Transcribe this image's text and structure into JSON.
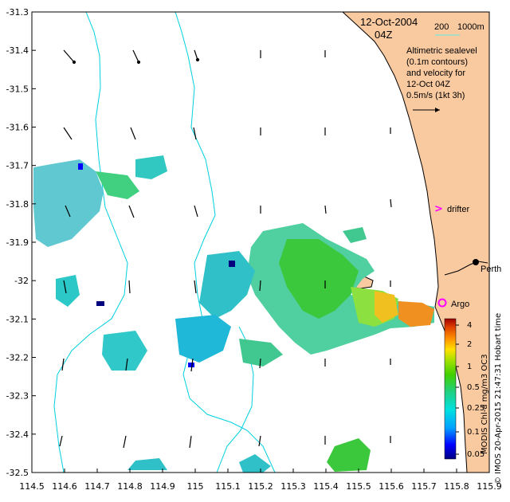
{
  "title": {
    "date": "12-Oct-2004",
    "time": "04Z"
  },
  "depth_legend": {
    "label_200": "200",
    "label_1000": "1000m",
    "color_200": "#00c8c8",
    "color_1000": "#90e0d0"
  },
  "legend_text": [
    "Altimetric sealevel",
    "(0.1m contours)",
    "and velocity for",
    "12-Oct 04Z",
    "0.5m/s (1kt 3h)"
  ],
  "markers": {
    "drifter": "drifter",
    "argo": "Argo",
    "city": "Perth",
    "drifter_color": "#ff00ff",
    "argo_color": "#ff00ff"
  },
  "axes": {
    "x_ticks": [
      "114.5",
      "114.6",
      "114.7",
      "114.8",
      "114.9",
      "115",
      "115.1",
      "115.2",
      "115.3",
      "115.4",
      "115.5",
      "115.6",
      "115.7",
      "115.8",
      "115.9"
    ],
    "y_ticks": [
      "-31.3",
      "-31.4",
      "-31.5",
      "-31.6",
      "-31.7",
      "-31.8",
      "-31.9",
      "-32",
      "-32.1",
      "-32.2",
      "-32.3",
      "-32.4",
      "-32.5"
    ],
    "xlim": [
      114.5,
      115.9
    ],
    "ylim": [
      -32.5,
      -31.3
    ]
  },
  "colorbar": {
    "ticks": [
      "4",
      "2",
      "1",
      "0.5",
      "0.25",
      "0.1",
      "0.05"
    ],
    "label": "MODIS Chl-a mg/m3 OC3",
    "colors": [
      "#00007f",
      "#0000ff",
      "#00a0ff",
      "#00e0e0",
      "#20d080",
      "#40d000",
      "#a0e000",
      "#ffe000",
      "#ff9000",
      "#e04000",
      "#a00000"
    ]
  },
  "credit": "© IMOS 20-Apr-2015 21:47:31 Hobart time",
  "colors": {
    "land": "#f9c9a0",
    "coast": "#000000",
    "contour": "#00d0e0"
  }
}
